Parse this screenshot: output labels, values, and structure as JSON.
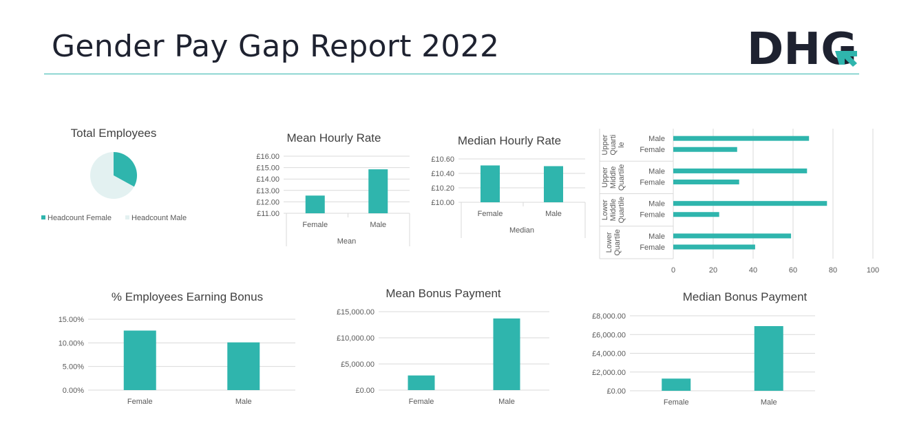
{
  "page": {
    "title": "Gender Pay Gap Report 2022",
    "logo_text": "DHG"
  },
  "colors": {
    "teal": "#2fb5ad",
    "light": "#e3f1f1",
    "text": "#404040",
    "navy": "#1e2230",
    "grid": "#d9d9d9"
  },
  "chart_data": [
    {
      "id": "total-employees",
      "type": "pie",
      "title": "Total Employees",
      "slices": [
        {
          "label": "Headcount Female",
          "value": 33,
          "color": "#2fb5ad"
        },
        {
          "label": "Headcount Male",
          "value": 67,
          "color": "#e3f1f1"
        }
      ],
      "legend": "bottom"
    },
    {
      "id": "mean-hourly-rate",
      "type": "bar",
      "title": "Mean Hourly Rate",
      "categories": [
        "Female",
        "Male"
      ],
      "group_label": "Mean",
      "values": [
        12.55,
        14.85
      ],
      "ylim": [
        11.0,
        16.0
      ],
      "ticks": [
        "£11.00",
        "£12.00",
        "£13.00",
        "£14.00",
        "£15.00",
        "£16.00"
      ],
      "grid": true
    },
    {
      "id": "median-hourly-rate",
      "type": "bar",
      "title": "Median Hourly Rate",
      "categories": [
        "Female",
        "Male"
      ],
      "group_label": "Median",
      "values": [
        10.51,
        10.5
      ],
      "ylim": [
        10.0,
        10.6
      ],
      "ticks": [
        "£10.00",
        "£10.20",
        "£10.40",
        "£10.60"
      ],
      "grid": true
    },
    {
      "id": "pay-quartiles",
      "type": "bar",
      "orientation": "horizontal",
      "groups": [
        {
          "label": "Upper Quartile",
          "lines": [
            "Upper",
            "Quarti",
            "le"
          ],
          "categories": [
            "Male",
            "Female"
          ],
          "values": [
            68,
            32
          ]
        },
        {
          "label": "Upper Middle Quartile",
          "lines": [
            "Upper",
            "Middle",
            "Quartile"
          ],
          "categories": [
            "Male",
            "Female"
          ],
          "values": [
            67,
            33
          ]
        },
        {
          "label": "Lower Middle Quartile",
          "lines": [
            "Lower",
            "Middle",
            "Quartile"
          ],
          "categories": [
            "Male",
            "Female"
          ],
          "values": [
            77,
            23
          ]
        },
        {
          "label": "Lower Quartile",
          "lines": [
            "Lower",
            "Quartile"
          ],
          "categories": [
            "Male",
            "Female"
          ],
          "values": [
            59,
            41
          ]
        }
      ],
      "xlim": [
        0,
        100
      ],
      "xticks": [
        "0",
        "20",
        "40",
        "60",
        "80",
        "100"
      ],
      "grid": true
    },
    {
      "id": "pct-earning-bonus",
      "type": "bar",
      "title": "% Employees Earning Bonus",
      "categories": [
        "Female",
        "Male"
      ],
      "values": [
        12.6,
        10.1
      ],
      "ylim": [
        0,
        15
      ],
      "ticks": [
        "0.00%",
        "5.00%",
        "10.00%",
        "15.00%"
      ],
      "grid": true
    },
    {
      "id": "mean-bonus-payment",
      "type": "bar",
      "title": "Mean Bonus Payment",
      "categories": [
        "Female",
        "Male"
      ],
      "values": [
        2800,
        13700
      ],
      "ylim": [
        0,
        15000
      ],
      "ticks": [
        "£0.00",
        "£5,000.00",
        "£10,000.00",
        "£15,000.00"
      ],
      "grid": true
    },
    {
      "id": "median-bonus-payment",
      "type": "bar",
      "title": "Median Bonus Payment",
      "categories": [
        "Female",
        "Male"
      ],
      "values": [
        1300,
        6900
      ],
      "ylim": [
        0,
        8000
      ],
      "ticks": [
        "£0.00",
        "£2,000.00",
        "£4,000.00",
        "£6,000.00",
        "£8,000.00"
      ],
      "grid": true
    }
  ]
}
